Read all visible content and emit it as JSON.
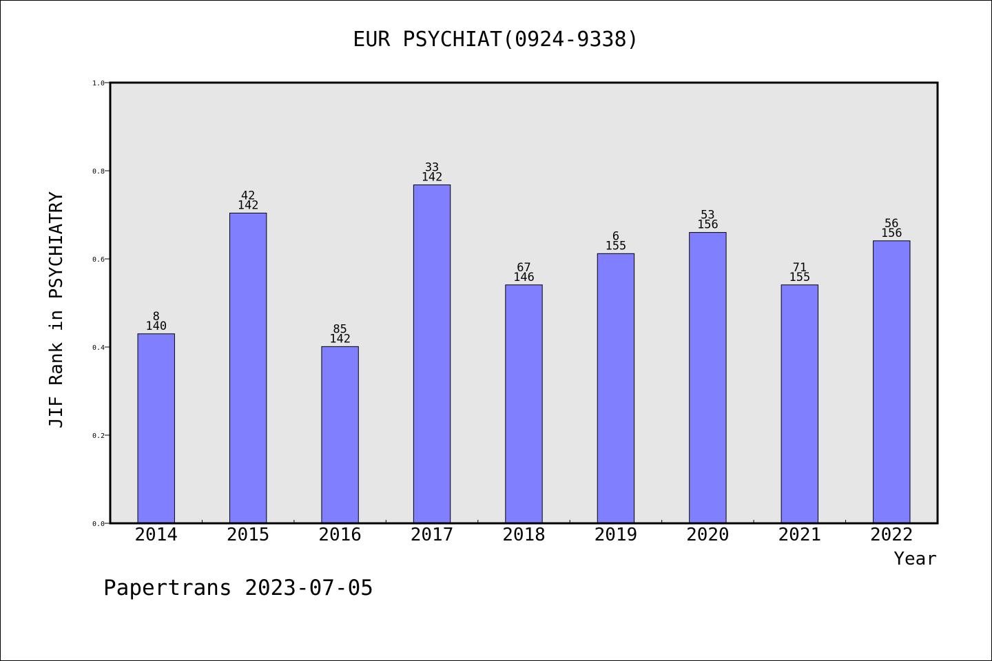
{
  "chart_data": {
    "type": "bar",
    "title": "EUR PSYCHIAT(0924-9338)",
    "xlabel": "Year",
    "ylabel": "JIF Rank in PSYCHIATRY",
    "ylim": [
      0,
      1.0
    ],
    "yticks": [
      "0.0",
      "0.2",
      "0.4",
      "0.6",
      "0.8",
      "1.0"
    ],
    "categories": [
      "2014",
      "2015",
      "2016",
      "2017",
      "2018",
      "2019",
      "2020",
      "2021",
      "2022"
    ],
    "values": [
      0.43,
      0.704,
      0.401,
      0.768,
      0.541,
      0.612,
      0.66,
      0.541,
      0.641
    ],
    "labels_top": [
      "8",
      "42",
      "85",
      "33",
      "67",
      "6",
      "53",
      "71",
      "56"
    ],
    "labels_bottom": [
      "140",
      "142",
      "142",
      "142",
      "146",
      "155",
      "156",
      "155",
      "156"
    ],
    "grid": false,
    "colors": {
      "bar": "#8080ff",
      "plot_bg": "#e6e6e6",
      "axis": "#000000"
    }
  },
  "footer": "Papertrans 2023-07-05"
}
